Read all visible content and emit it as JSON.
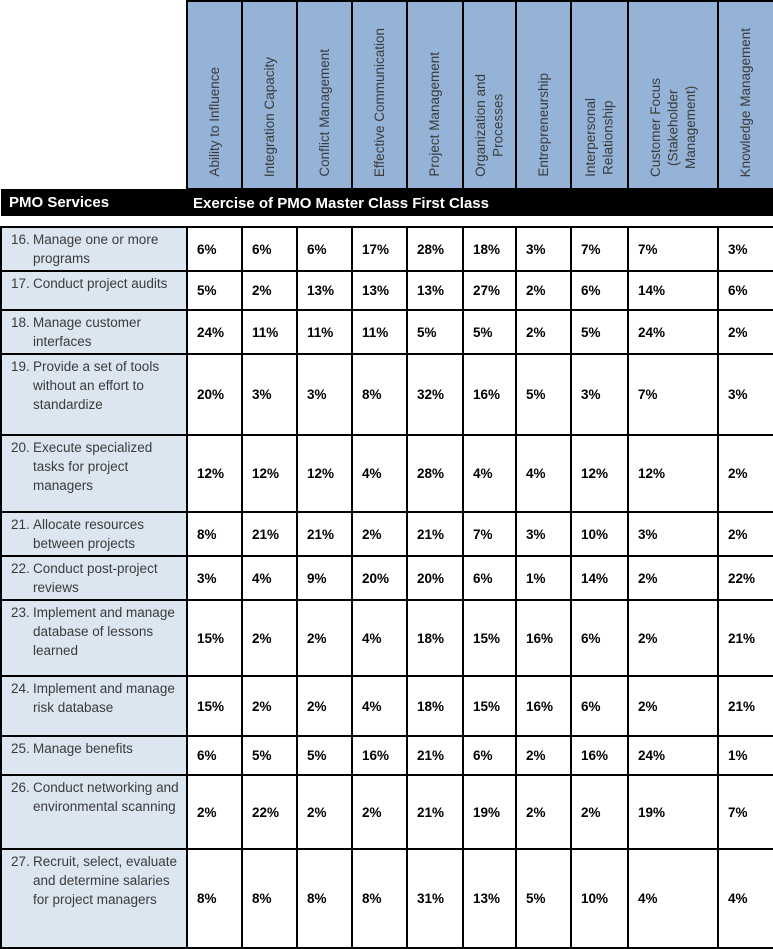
{
  "band": {
    "left_label": "PMO Services",
    "right_label": "Exercise of PMO Master Class First Class"
  },
  "table": {
    "columns": [
      "Ability to Influence",
      "Integration Capacity",
      "Conflict Management",
      "Effective Communication",
      "Project Management",
      "Organization and\nProcesses",
      "Entrepreneurship",
      "Interpersonal\nRelationship",
      "Customer Focus\n(Stakeholder\nManagement)",
      "Knowledge Management"
    ],
    "rows": [
      {
        "id": "16.",
        "label": "Manage one or more programs",
        "values": [
          "6%",
          "6%",
          "6%",
          "17%",
          "28%",
          "18%",
          "3%",
          "7%",
          "7%",
          "3%"
        ]
      },
      {
        "id": "17.",
        "label": "Conduct project audits",
        "values": [
          "5%",
          "2%",
          "13%",
          "13%",
          "13%",
          "27%",
          "2%",
          "6%",
          "14%",
          "6%"
        ]
      },
      {
        "id": "18.",
        "label": "Manage customer interfaces",
        "values": [
          "24%",
          "11%",
          "11%",
          "11%",
          "5%",
          "5%",
          "2%",
          "5%",
          "24%",
          "2%"
        ]
      },
      {
        "id": "19.",
        "label": "Provide a set of tools without an effort to standardize",
        "values": [
          "20%",
          "3%",
          "3%",
          "8%",
          "32%",
          "16%",
          "5%",
          "3%",
          "7%",
          "3%"
        ]
      },
      {
        "id": "20.",
        "label": "Execute specialized tasks for project managers",
        "values": [
          "12%",
          "12%",
          "12%",
          "4%",
          "28%",
          "4%",
          "4%",
          "12%",
          "12%",
          "2%"
        ]
      },
      {
        "id": "21.",
        "label": "Allocate resources between projects",
        "values": [
          "8%",
          "21%",
          "21%",
          "2%",
          "21%",
          "7%",
          "3%",
          "10%",
          "3%",
          "2%"
        ]
      },
      {
        "id": "22.",
        "label": "Conduct post-project reviews",
        "values": [
          "3%",
          "4%",
          "9%",
          "20%",
          "20%",
          "6%",
          "1%",
          "14%",
          "2%",
          "22%"
        ]
      },
      {
        "id": "23.",
        "label": "Implement and manage database of lessons learned",
        "values": [
          "15%",
          "2%",
          "2%",
          "4%",
          "18%",
          "15%",
          "16%",
          "6%",
          "2%",
          "21%"
        ]
      },
      {
        "id": "24.",
        "label": "Implement and manage risk database",
        "values": [
          "15%",
          "2%",
          "2%",
          "4%",
          "18%",
          "15%",
          "16%",
          "6%",
          "2%",
          "21%"
        ]
      },
      {
        "id": "25.",
        "label": "Manage benefits",
        "values": [
          "6%",
          "5%",
          "5%",
          "16%",
          "21%",
          "6%",
          "2%",
          "16%",
          "24%",
          "1%"
        ]
      },
      {
        "id": "26.",
        "label": "Conduct networking and environmental scanning",
        "values": [
          "2%",
          "22%",
          "2%",
          "2%",
          "21%",
          "19%",
          "2%",
          "2%",
          "19%",
          "7%"
        ]
      },
      {
        "id": "27.",
        "label": "Recruit, select, evaluate and determine salaries for project managers",
        "values": [
          "8%",
          "8%",
          "8%",
          "8%",
          "31%",
          "13%",
          "5%",
          "10%",
          "4%",
          "4%"
        ]
      }
    ]
  },
  "colors": {
    "header_fill": "#95b3d7",
    "label_fill": "#dce6f1",
    "band_fill": "#000000",
    "band_text": "#ffffff",
    "border": "#000000",
    "label_text": "#3b3b3b",
    "value_text": "#000000"
  }
}
